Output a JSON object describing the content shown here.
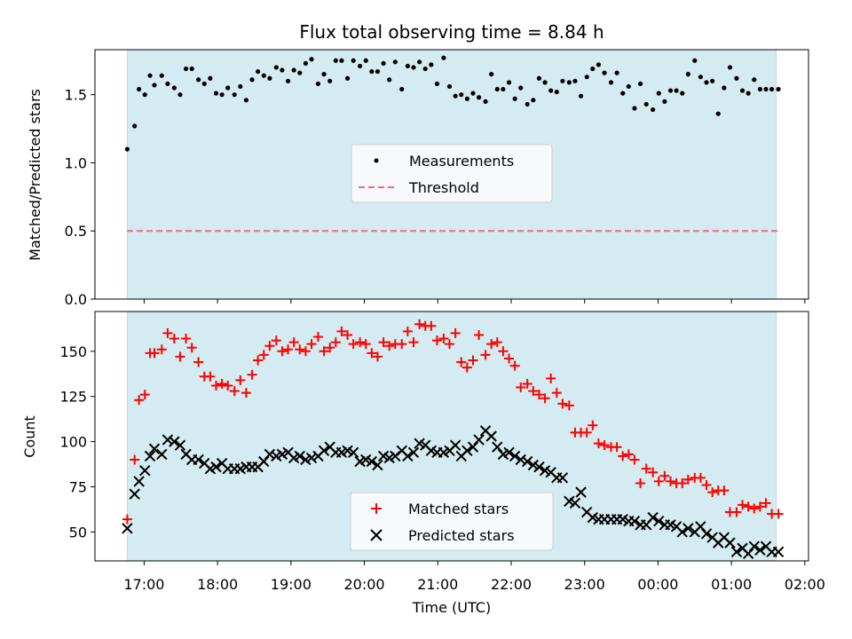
{
  "chart_data": [
    {
      "type": "scatter",
      "title": "Flux total observing time = 8.84 h",
      "xlabel": "",
      "ylabel": "Matched/Predicted stars",
      "ylim": [
        0,
        1.83
      ],
      "yticks": [
        0.0,
        0.5,
        1.0,
        1.5
      ],
      "ytick_labels": [
        "0.0",
        "0.5",
        "1.0",
        "1.5"
      ],
      "xlim_hours": [
        16.33,
        26.05
      ],
      "observing_window_hours": [
        16.77,
        25.61
      ],
      "threshold": 0.5,
      "legend": {
        "placement": "center",
        "entries": [
          {
            "name": "Measurements",
            "kind": "dot"
          },
          {
            "name": "Threshold",
            "kind": "dashed"
          }
        ]
      },
      "series": [
        {
          "name": "Measurements",
          "color": "#000000",
          "x": [
            16.77,
            16.87,
            16.93,
            17.01,
            17.08,
            17.14,
            17.24,
            17.32,
            17.41,
            17.49,
            17.57,
            17.65,
            17.74,
            17.82,
            17.9,
            17.98,
            18.06,
            18.14,
            18.23,
            18.31,
            18.39,
            18.47,
            18.55,
            18.63,
            18.71,
            18.8,
            18.88,
            18.96,
            19.04,
            19.12,
            19.2,
            19.28,
            19.37,
            19.45,
            19.53,
            19.61,
            19.69,
            19.77,
            19.85,
            19.94,
            20.02,
            20.1,
            20.18,
            20.26,
            20.34,
            20.42,
            20.51,
            20.59,
            20.67,
            20.75,
            20.83,
            20.91,
            20.99,
            21.08,
            21.16,
            21.24,
            21.32,
            21.4,
            21.48,
            21.56,
            21.65,
            21.73,
            21.81,
            21.89,
            21.97,
            22.05,
            22.13,
            22.22,
            22.3,
            22.38,
            22.46,
            22.54,
            22.62,
            22.7,
            22.79,
            22.87,
            22.95,
            23.03,
            23.11,
            23.19,
            23.27,
            23.36,
            23.44,
            23.52,
            23.6,
            23.68,
            23.76,
            23.84,
            23.93,
            24.01,
            24.09,
            24.17,
            24.25,
            24.33,
            24.41,
            24.5,
            24.58,
            24.66,
            24.74,
            24.82,
            24.9,
            24.98,
            25.07,
            25.15,
            25.23,
            25.31,
            25.39,
            25.47,
            25.55,
            25.64
          ],
          "y": [
            1.1,
            1.27,
            1.54,
            1.5,
            1.64,
            1.57,
            1.64,
            1.58,
            1.55,
            1.5,
            1.69,
            1.69,
            1.61,
            1.58,
            1.62,
            1.51,
            1.5,
            1.55,
            1.5,
            1.56,
            1.46,
            1.61,
            1.67,
            1.64,
            1.62,
            1.7,
            1.68,
            1.6,
            1.68,
            1.66,
            1.73,
            1.76,
            1.58,
            1.65,
            1.6,
            1.75,
            1.75,
            1.62,
            1.75,
            1.71,
            1.75,
            1.67,
            1.67,
            1.73,
            1.61,
            1.74,
            1.54,
            1.71,
            1.7,
            1.74,
            1.69,
            1.72,
            1.58,
            1.77,
            1.56,
            1.49,
            1.5,
            1.47,
            1.51,
            1.48,
            1.45,
            1.65,
            1.54,
            1.54,
            1.59,
            1.47,
            1.55,
            1.43,
            1.46,
            1.62,
            1.59,
            1.53,
            1.52,
            1.6,
            1.59,
            1.6,
            1.49,
            1.63,
            1.69,
            1.72,
            1.66,
            1.59,
            1.66,
            1.51,
            1.56,
            1.4,
            1.58,
            1.43,
            1.39,
            1.51,
            1.45,
            1.53,
            1.53,
            1.51,
            1.65,
            1.75,
            1.63,
            1.59,
            1.6,
            1.36,
            1.55,
            1.7,
            1.62,
            1.53,
            1.51,
            1.61,
            1.54,
            1.54,
            1.54,
            1.54
          ]
        }
      ]
    },
    {
      "type": "scatter",
      "title": "",
      "xlabel": "Time (UTC)",
      "ylabel": "Count",
      "ylim": [
        34,
        172
      ],
      "yticks": [
        50,
        75,
        100,
        125,
        150
      ],
      "ytick_labels": [
        "50",
        "75",
        "100",
        "125",
        "150"
      ],
      "xlim_hours": [
        16.33,
        26.05
      ],
      "xticks_hours": [
        17,
        18,
        19,
        20,
        21,
        22,
        23,
        24,
        25,
        26
      ],
      "xtick_labels": [
        "17:00",
        "18:00",
        "19:00",
        "20:00",
        "21:00",
        "22:00",
        "23:00",
        "00:00",
        "01:00",
        "02:00"
      ],
      "observing_window_hours": [
        16.77,
        25.61
      ],
      "legend": {
        "placement": "bottom-center",
        "entries": [
          {
            "name": "Matched stars",
            "kind": "plus"
          },
          {
            "name": "Predicted stars",
            "kind": "cross"
          }
        ]
      },
      "series": [
        {
          "name": "Matched stars",
          "color": "#ff0000",
          "marker": "plus",
          "x": [
            16.77,
            16.87,
            16.93,
            17.01,
            17.08,
            17.14,
            17.24,
            17.32,
            17.41,
            17.49,
            17.57,
            17.65,
            17.74,
            17.82,
            17.9,
            17.98,
            18.06,
            18.14,
            18.23,
            18.31,
            18.39,
            18.47,
            18.55,
            18.63,
            18.71,
            18.8,
            18.88,
            18.96,
            19.04,
            19.12,
            19.2,
            19.28,
            19.37,
            19.45,
            19.53,
            19.61,
            19.69,
            19.77,
            19.85,
            19.94,
            20.02,
            20.1,
            20.18,
            20.26,
            20.34,
            20.42,
            20.51,
            20.59,
            20.67,
            20.75,
            20.83,
            20.91,
            20.99,
            21.08,
            21.16,
            21.24,
            21.32,
            21.4,
            21.48,
            21.56,
            21.65,
            21.73,
            21.81,
            21.89,
            21.97,
            22.05,
            22.13,
            22.22,
            22.3,
            22.38,
            22.46,
            22.54,
            22.62,
            22.7,
            22.79,
            22.87,
            22.95,
            23.03,
            23.11,
            23.19,
            23.27,
            23.36,
            23.44,
            23.52,
            23.6,
            23.68,
            23.76,
            23.84,
            23.93,
            24.01,
            24.09,
            24.17,
            24.25,
            24.33,
            24.41,
            24.5,
            24.58,
            24.66,
            24.74,
            24.82,
            24.9,
            24.98,
            25.07,
            25.15,
            25.23,
            25.31,
            25.39,
            25.47,
            25.55,
            25.64
          ],
          "y": [
            57,
            90,
            123,
            126,
            149,
            149,
            151,
            160,
            157,
            147,
            157,
            152,
            144,
            136,
            136,
            131,
            132,
            131,
            128,
            134,
            127,
            137,
            145,
            148,
            153,
            156,
            150,
            151,
            155,
            151,
            150,
            154,
            158,
            150,
            152,
            155,
            161,
            159,
            154,
            155,
            154,
            149,
            147,
            155,
            153,
            154,
            154,
            161,
            155,
            165,
            164,
            164,
            156,
            157,
            154,
            160,
            144,
            141,
            145,
            159,
            148,
            154,
            155,
            150,
            146,
            142,
            130,
            132,
            128,
            126,
            124,
            135,
            127,
            121,
            120,
            105,
            105,
            105,
            109,
            99,
            98,
            97,
            97,
            92,
            93,
            90,
            77,
            85,
            83,
            78,
            81,
            78,
            77,
            77,
            79,
            80,
            80,
            76,
            72,
            73,
            73,
            61,
            61,
            65,
            64,
            63,
            64,
            66,
            60,
            60
          ]
        },
        {
          "name": "Predicted stars",
          "color": "#000000",
          "marker": "cross",
          "x": [
            16.77,
            16.87,
            16.93,
            17.01,
            17.08,
            17.14,
            17.24,
            17.32,
            17.41,
            17.49,
            17.57,
            17.65,
            17.74,
            17.82,
            17.9,
            17.98,
            18.06,
            18.14,
            18.23,
            18.31,
            18.39,
            18.47,
            18.55,
            18.63,
            18.71,
            18.8,
            18.88,
            18.96,
            19.04,
            19.12,
            19.2,
            19.28,
            19.37,
            19.45,
            19.53,
            19.61,
            19.69,
            19.77,
            19.85,
            19.94,
            20.02,
            20.1,
            20.18,
            20.26,
            20.34,
            20.42,
            20.51,
            20.59,
            20.67,
            20.75,
            20.83,
            20.91,
            20.99,
            21.08,
            21.16,
            21.24,
            21.32,
            21.4,
            21.48,
            21.56,
            21.65,
            21.73,
            21.81,
            21.89,
            21.97,
            22.05,
            22.13,
            22.22,
            22.3,
            22.38,
            22.46,
            22.54,
            22.62,
            22.7,
            22.79,
            22.87,
            22.95,
            23.03,
            23.11,
            23.19,
            23.27,
            23.36,
            23.44,
            23.52,
            23.6,
            23.68,
            23.76,
            23.84,
            23.93,
            24.01,
            24.09,
            24.17,
            24.25,
            24.33,
            24.41,
            24.5,
            24.58,
            24.66,
            24.74,
            24.82,
            24.9,
            24.98,
            25.07,
            25.15,
            25.23,
            25.31,
            25.39,
            25.47,
            25.55,
            25.64
          ],
          "y": [
            52,
            71,
            78,
            84,
            92,
            96,
            93,
            101,
            100,
            98,
            93,
            90,
            90,
            88,
            85,
            86,
            88,
            85,
            85,
            85,
            86,
            86,
            86,
            89,
            93,
            92,
            93,
            94,
            91,
            92,
            90,
            91,
            92,
            95,
            97,
            94,
            94,
            95,
            94,
            89,
            90,
            89,
            87,
            92,
            91,
            92,
            95,
            92,
            94,
            99,
            98,
            95,
            94,
            94,
            95,
            98,
            92,
            95,
            97,
            101,
            106,
            103,
            97,
            93,
            94,
            92,
            90,
            89,
            87,
            86,
            84,
            83,
            80,
            80,
            67,
            66,
            72,
            61,
            58,
            57,
            57,
            57,
            57,
            57,
            56,
            56,
            54,
            54,
            58,
            56,
            54,
            54,
            53,
            50,
            52,
            50,
            53,
            49,
            47,
            44,
            47,
            44,
            39,
            41,
            38,
            42,
            40,
            42,
            39,
            39
          ]
        }
      ]
    }
  ]
}
